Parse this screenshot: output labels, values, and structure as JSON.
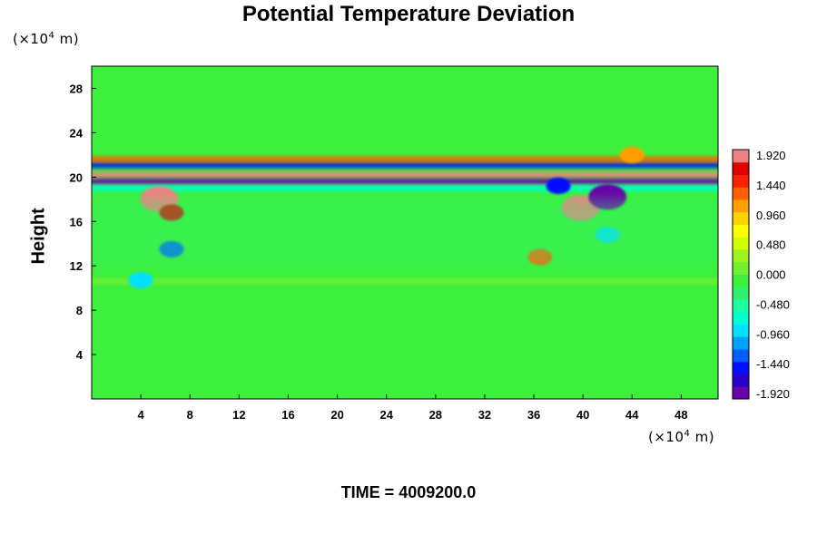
{
  "title": "Potential Temperature Deviation",
  "y_unit": {
    "prefix": "(×10",
    "exp": "4",
    "suffix": " m)"
  },
  "x_unit": {
    "prefix": "(×10",
    "exp": "4",
    "suffix": " m)"
  },
  "ylabel": "Height",
  "time_label": "TIME = 4009200.0",
  "colors": {
    "background_field": "#3cf03c",
    "palette": [
      "#6a00a8",
      "#2a00c8",
      "#0010ff",
      "#0060ff",
      "#00a0ff",
      "#00e0ff",
      "#00ffd0",
      "#20ffa0",
      "#30f070",
      "#3cf03c",
      "#70f030",
      "#a0f020",
      "#d0ff00",
      "#ffff00",
      "#ffd000",
      "#ffa000",
      "#ff6000",
      "#ff2000",
      "#e00000",
      "#f08080"
    ]
  },
  "chart_data": {
    "type": "heatmap",
    "title": "Potential Temperature Deviation",
    "xlabel": "",
    "ylabel": "Height",
    "xlim": [
      0,
      51
    ],
    "ylim": [
      0,
      30
    ],
    "x_ticks": [
      4,
      8,
      12,
      16,
      20,
      24,
      28,
      32,
      36,
      40,
      44,
      48
    ],
    "y_ticks": [
      4,
      8,
      12,
      16,
      20,
      24,
      28
    ],
    "colorbar": {
      "range": [
        -1.92,
        1.92
      ],
      "labels": [
        "1.920",
        "1.440",
        "0.960",
        "0.480",
        "0.000",
        "-0.480",
        "-0.960",
        "-1.440",
        "-1.920"
      ]
    },
    "features": [
      {
        "kind": "band",
        "y": 20.2,
        "value": 1.9
      },
      {
        "kind": "band",
        "y": 19.6,
        "value": -1.9
      },
      {
        "kind": "band",
        "y": 21.1,
        "value": -1.5
      },
      {
        "kind": "band",
        "y": 21.6,
        "value": 1.2
      },
      {
        "kind": "band",
        "y": 19.0,
        "value": -0.6
      },
      {
        "kind": "band",
        "y": 10.6,
        "value": 0.15
      },
      {
        "kind": "blob",
        "x": 5.5,
        "y": 18.0,
        "value": 1.9
      },
      {
        "kind": "blob",
        "x": 6.5,
        "y": 16.8,
        "value": 1.6
      },
      {
        "kind": "blob",
        "x": 6.5,
        "y": 13.5,
        "value": -1.2
      },
      {
        "kind": "blob",
        "x": 4.0,
        "y": 10.7,
        "value": -0.9
      },
      {
        "kind": "blob",
        "x": 39.8,
        "y": 17.2,
        "value": 1.9
      },
      {
        "kind": "blob",
        "x": 42.0,
        "y": 18.2,
        "value": -1.9
      },
      {
        "kind": "blob",
        "x": 38.0,
        "y": 19.2,
        "value": -1.5
      },
      {
        "kind": "blob",
        "x": 36.5,
        "y": 12.8,
        "value": 1.3
      },
      {
        "kind": "blob",
        "x": 42.0,
        "y": 14.8,
        "value": -0.9
      },
      {
        "kind": "blob",
        "x": 44.0,
        "y": 22.0,
        "value": 1.1
      },
      {
        "kind": "region",
        "x0": 0,
        "x1": 51,
        "y0": 12,
        "y1": 18,
        "value": -0.35
      }
    ]
  }
}
